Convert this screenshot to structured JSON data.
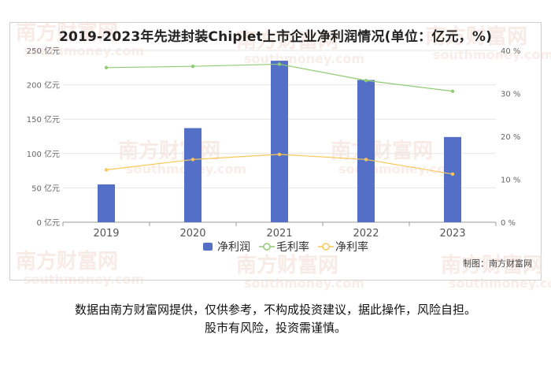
{
  "chart_data": {
    "type": "bar",
    "title": "2019-2023年先进封装Chiplet上市企业净利润情况(单位：亿元，%)",
    "categories": [
      "2019",
      "2020",
      "2021",
      "2022",
      "2023"
    ],
    "series": [
      {
        "name": "净利润",
        "kind": "bar",
        "axis": "left",
        "color": "#5470c6",
        "values": [
          55,
          137,
          235,
          207,
          124
        ]
      },
      {
        "name": "毛利率",
        "kind": "line",
        "axis": "right",
        "color": "#91cc75",
        "values": [
          36.0,
          36.3,
          36.8,
          33.0,
          30.5
        ]
      },
      {
        "name": "净利率",
        "kind": "line",
        "axis": "right",
        "color": "#fac858",
        "values": [
          12.2,
          14.6,
          15.8,
          14.6,
          11.2
        ]
      }
    ],
    "y_left": {
      "min": 0,
      "max": 250,
      "ticks": [
        0,
        50,
        100,
        150,
        200,
        250
      ],
      "suffix": " 亿元"
    },
    "y_right": {
      "min": 0,
      "max": 40,
      "ticks": [
        0,
        10,
        20,
        30,
        40
      ],
      "suffix": " %"
    },
    "grid": true,
    "legend_position": "bottom"
  },
  "credit": "制图：南方财富网",
  "disclaimer": {
    "line1": "数据由南方财富网提供，仅供参考，不构成投资建议，据此操作，风险自担。",
    "line2": "股市有风险，投资需谨慎。"
  },
  "watermark": {
    "cn": "南方财富网",
    "en": "southmoney.com"
  }
}
